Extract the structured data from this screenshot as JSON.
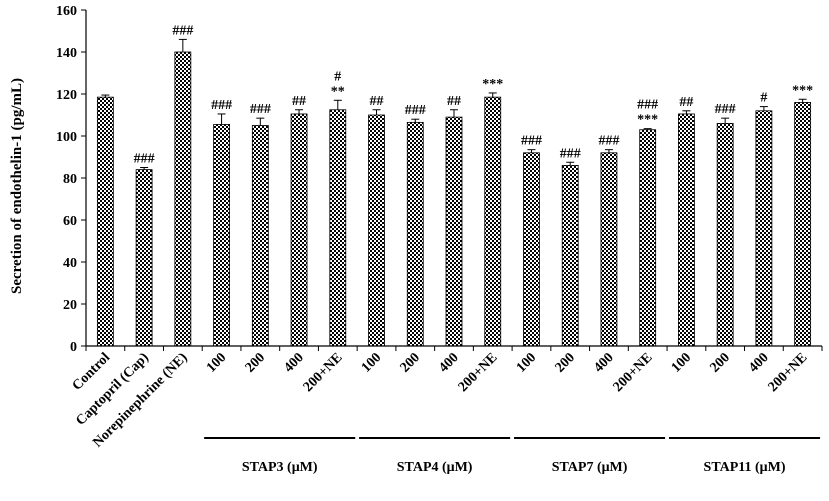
{
  "chart_data": {
    "type": "bar",
    "ylabel": "Secretion of endothelin-1 (pg/mL)",
    "xlabel": "",
    "ylim": [
      0,
      160
    ],
    "yticks": [
      0,
      20,
      40,
      60,
      80,
      100,
      120,
      140,
      160
    ],
    "grid": false,
    "legend": "none",
    "categories": [
      "Control",
      "Captopril (Cap)",
      "Norepinephrine (NE)",
      "100",
      "200",
      "400",
      "200+NE",
      "100",
      "200",
      "400",
      "200+NE",
      "100",
      "200",
      "400",
      "200+NE",
      "100",
      "200",
      "400",
      "200+NE"
    ],
    "values": [
      118.5,
      84,
      140,
      105.5,
      105,
      110.5,
      112.5,
      110,
      106.5,
      109,
      118.5,
      92,
      86,
      92,
      103,
      110.5,
      106,
      112,
      116
    ],
    "errors": [
      1,
      1,
      6,
      5,
      3.5,
      2,
      4.5,
      2.5,
      1.5,
      3.5,
      2,
      1.5,
      1.5,
      1.5,
      0.5,
      1.5,
      2.5,
      2,
      1.5
    ],
    "annotations": [
      [],
      [
        "###"
      ],
      [
        "###"
      ],
      [
        "###"
      ],
      [
        "###"
      ],
      [
        "##"
      ],
      [
        "#",
        "**"
      ],
      [
        "##"
      ],
      [
        "###"
      ],
      [
        "##"
      ],
      [
        "***"
      ],
      [
        "###"
      ],
      [
        "###"
      ],
      [
        "###"
      ],
      [
        "###",
        "***"
      ],
      [
        "##"
      ],
      [
        "###"
      ],
      [
        "#"
      ],
      [
        "***"
      ]
    ],
    "groups": [
      {
        "label": "STAP3 (μM)",
        "start": 3,
        "end": 6
      },
      {
        "label": "STAP4 (μM)",
        "start": 7,
        "end": 10
      },
      {
        "label": "STAP7 (μM)",
        "start": 11,
        "end": 14
      },
      {
        "label": "STAP11 (μM)",
        "start": 15,
        "end": 18
      }
    ],
    "colors": {
      "bar_fill": "#ffffff",
      "bar_pattern": "#000000",
      "axis": "#000000"
    }
  }
}
